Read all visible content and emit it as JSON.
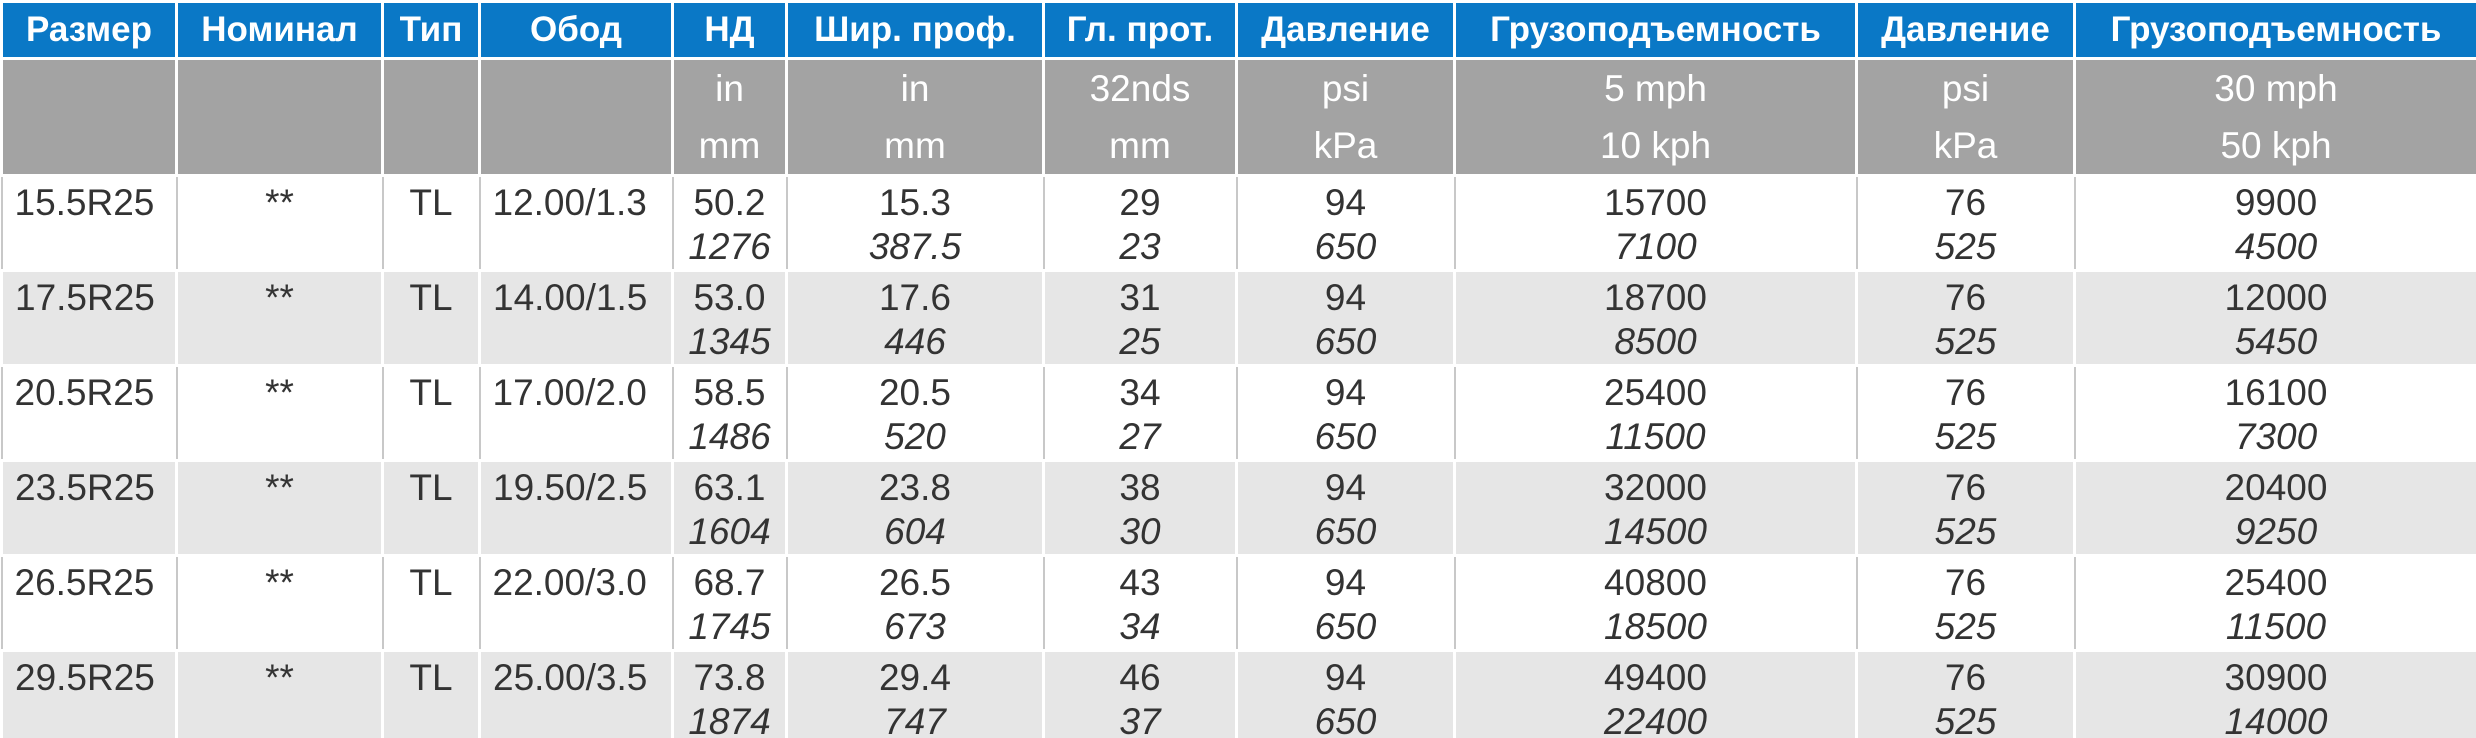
{
  "table": {
    "header": [
      "Размер",
      "Номинал",
      "Тип",
      "Обод",
      "НД",
      "Шир. проф.",
      "Гл. прот.",
      "Давление",
      "Грузоподъемность",
      "Давление",
      "Грузоподъемность"
    ],
    "units": [
      null,
      null,
      null,
      null,
      [
        "in",
        "mm"
      ],
      [
        "in",
        "mm"
      ],
      [
        "32nds",
        "mm"
      ],
      [
        "psi",
        "kPa"
      ],
      [
        "5 mph",
        "10 kph"
      ],
      [
        "psi",
        "kPa"
      ],
      [
        "30 mph",
        "50 kph"
      ]
    ],
    "rows": [
      [
        "15.5R25",
        "**",
        "TL",
        "12.00/1.3",
        [
          "50.2",
          "1276"
        ],
        [
          "15.3",
          "387.5"
        ],
        [
          "29",
          "23"
        ],
        [
          "94",
          "650"
        ],
        [
          "15700",
          "7100"
        ],
        [
          "76",
          "525"
        ],
        [
          "9900",
          "4500"
        ]
      ],
      [
        "17.5R25",
        "**",
        "TL",
        "14.00/1.5",
        [
          "53.0",
          "1345"
        ],
        [
          "17.6",
          "446"
        ],
        [
          "31",
          "25"
        ],
        [
          "94",
          "650"
        ],
        [
          "18700",
          "8500"
        ],
        [
          "76",
          "525"
        ],
        [
          "12000",
          "5450"
        ]
      ],
      [
        "20.5R25",
        "**",
        "TL",
        "17.00/2.0",
        [
          "58.5",
          "1486"
        ],
        [
          "20.5",
          "520"
        ],
        [
          "34",
          "27"
        ],
        [
          "94",
          "650"
        ],
        [
          "25400",
          "11500"
        ],
        [
          "76",
          "525"
        ],
        [
          "16100",
          "7300"
        ]
      ],
      [
        "23.5R25",
        "**",
        "TL",
        "19.50/2.5",
        [
          "63.1",
          "1604"
        ],
        [
          "23.8",
          "604"
        ],
        [
          "38",
          "30"
        ],
        [
          "94",
          "650"
        ],
        [
          "32000",
          "14500"
        ],
        [
          "76",
          "525"
        ],
        [
          "20400",
          "9250"
        ]
      ],
      [
        "26.5R25",
        "**",
        "TL",
        "22.00/3.0",
        [
          "68.7",
          "1745"
        ],
        [
          "26.5",
          "673"
        ],
        [
          "43",
          "34"
        ],
        [
          "94",
          "650"
        ],
        [
          "40800",
          "18500"
        ],
        [
          "76",
          "525"
        ],
        [
          "25400",
          "11500"
        ]
      ],
      [
        "29.5R25",
        "**",
        "TL",
        "25.00/3.5",
        [
          "73.8",
          "1874"
        ],
        [
          "29.4",
          "747"
        ],
        [
          "46",
          "37"
        ],
        [
          "94",
          "650"
        ],
        [
          "49400",
          "22400"
        ],
        [
          "76",
          "525"
        ],
        [
          "30900",
          "14000"
        ]
      ]
    ]
  }
}
